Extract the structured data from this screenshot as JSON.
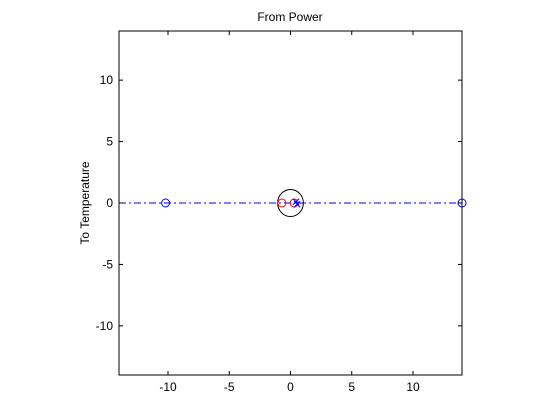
{
  "chart_data": {
    "type": "scatter",
    "title": "From Power",
    "xlabel": "",
    "ylabel": "To Temperature",
    "xlim": [
      -14,
      14
    ],
    "ylim": [
      -14,
      14
    ],
    "grid": false,
    "xticks": [
      -10,
      -5,
      0,
      5,
      10
    ],
    "xtick_labels": [
      "-10",
      "-5",
      "0",
      "5",
      "10"
    ],
    "yticks": [
      -10,
      -5,
      0,
      5,
      10
    ],
    "ytick_labels": [
      "-10",
      "-5",
      "0",
      "5",
      "10"
    ],
    "axis_line": {
      "y": 0,
      "x_range": [
        -14,
        14
      ],
      "style": "dash-dot",
      "color": "#0000ff"
    },
    "zeros_blue": [
      {
        "x": -10.2,
        "y": 0
      },
      {
        "x": 14.0,
        "y": 0
      }
    ],
    "zeros_red": [
      {
        "x": -0.7,
        "y": 0
      },
      {
        "x": 0.3,
        "y": 0
      }
    ],
    "poles": [
      {
        "x": 0.45,
        "y": 0.1
      },
      {
        "x": 0.55,
        "y": -0.1
      }
    ],
    "unit_circle": {
      "cx": 0,
      "cy": 0,
      "r": 1
    },
    "colors": {
      "axis_line": "#0000ff",
      "zeros_blue": "#0000ff",
      "zeros_red": "#ff0000",
      "poles": "#0000ff",
      "circle": "#000000"
    }
  }
}
